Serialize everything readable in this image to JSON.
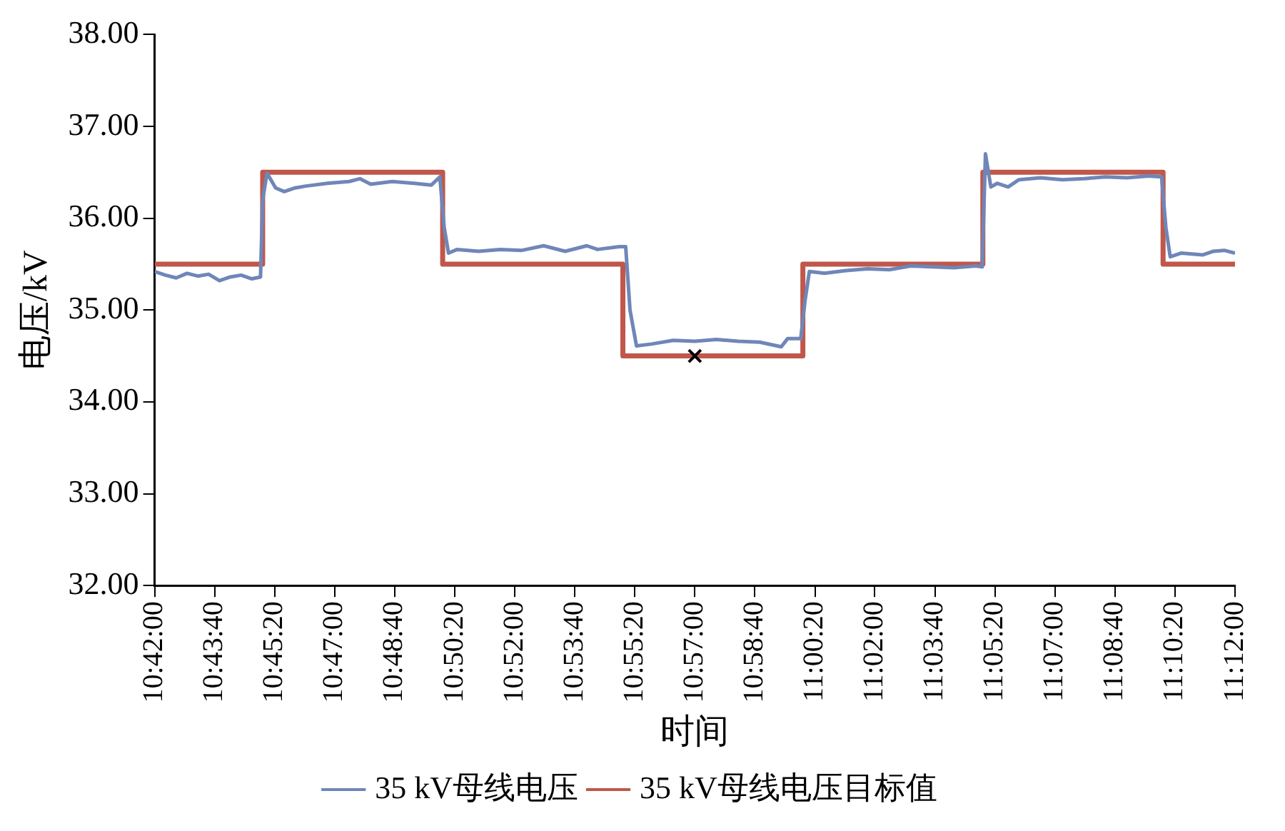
{
  "chart_data": {
    "type": "line",
    "xlabel": "时间",
    "ylabel": "电压/kV",
    "legend": "bottom",
    "grid": false,
    "xlim": [
      10.7,
      11.2
    ],
    "ylim": [
      32,
      38
    ],
    "xticks": [
      {
        "value": 10.7,
        "label": "10:42:00"
      },
      {
        "value": 10.7278,
        "label": "10:43:40"
      },
      {
        "value": 10.7556,
        "label": "10:45:20"
      },
      {
        "value": 10.7833,
        "label": "10:47:00"
      },
      {
        "value": 10.8111,
        "label": "10:48:40"
      },
      {
        "value": 10.8389,
        "label": "10:50:20"
      },
      {
        "value": 10.8667,
        "label": "10:52:00"
      },
      {
        "value": 10.8944,
        "label": "10:53:40"
      },
      {
        "value": 10.9222,
        "label": "10:55:20"
      },
      {
        "value": 10.95,
        "label": "10:57:00"
      },
      {
        "value": 10.9778,
        "label": "10:58:40"
      },
      {
        "value": 11.0056,
        "label": "11:00:20"
      },
      {
        "value": 11.0333,
        "label": "11:02:00"
      },
      {
        "value": 11.0611,
        "label": "11:03:40"
      },
      {
        "value": 11.0889,
        "label": "11:05:20"
      },
      {
        "value": 11.1167,
        "label": "11:07:00"
      },
      {
        "value": 11.1444,
        "label": "11:08:40"
      },
      {
        "value": 11.1722,
        "label": "11:10:20"
      },
      {
        "value": 11.2,
        "label": "11:12:00"
      }
    ],
    "yticks": [
      {
        "value": 32,
        "label": "32.00"
      },
      {
        "value": 33,
        "label": "33.00"
      },
      {
        "value": 34,
        "label": "34.00"
      },
      {
        "value": 35,
        "label": "35.00"
      },
      {
        "value": 36,
        "label": "36.00"
      },
      {
        "value": 37,
        "label": "37.00"
      },
      {
        "value": 38,
        "label": "38.00"
      }
    ],
    "series": [
      {
        "name": "35 kV母线电压",
        "color": "#6f86b8",
        "marker": "none",
        "x": [
          10.7,
          10.705,
          10.71,
          10.715,
          10.72,
          10.725,
          10.73,
          10.735,
          10.74,
          10.745,
          10.749,
          10.75,
          10.752,
          10.756,
          10.76,
          10.765,
          10.77,
          10.78,
          10.79,
          10.795,
          10.8,
          10.81,
          10.82,
          10.828,
          10.832,
          10.834,
          10.836,
          10.84,
          10.85,
          10.86,
          10.87,
          10.88,
          10.89,
          10.9,
          10.905,
          10.915,
          10.918,
          10.92,
          10.923,
          10.93,
          10.94,
          10.95,
          10.96,
          10.97,
          10.98,
          10.99,
          10.993,
          10.999,
          11.001,
          11.003,
          11.01,
          11.02,
          11.03,
          11.04,
          11.05,
          11.06,
          11.07,
          11.08,
          11.083,
          11.0845,
          11.087,
          11.09,
          11.095,
          11.1,
          11.11,
          11.12,
          11.13,
          11.14,
          11.15,
          11.16,
          11.166,
          11.168,
          11.17,
          11.175,
          11.18,
          11.185,
          11.19,
          11.195,
          11.2
        ],
        "values": [
          35.42,
          35.38,
          35.35,
          35.4,
          35.37,
          35.39,
          35.32,
          35.36,
          35.38,
          35.34,
          35.36,
          36.2,
          36.49,
          36.33,
          36.29,
          36.33,
          36.35,
          36.38,
          36.4,
          36.43,
          36.37,
          36.4,
          36.38,
          36.36,
          36.45,
          35.9,
          35.62,
          35.66,
          35.64,
          35.66,
          35.65,
          35.7,
          35.64,
          35.7,
          35.66,
          35.69,
          35.69,
          35.0,
          34.61,
          34.63,
          34.67,
          34.66,
          34.68,
          34.66,
          34.65,
          34.6,
          34.69,
          34.69,
          35.1,
          35.42,
          35.4,
          35.43,
          35.45,
          35.44,
          35.48,
          35.47,
          35.46,
          35.48,
          35.47,
          36.7,
          36.34,
          36.38,
          36.34,
          36.42,
          36.44,
          36.42,
          36.43,
          36.45,
          36.44,
          36.46,
          36.45,
          35.9,
          35.58,
          35.62,
          35.61,
          35.6,
          35.64,
          35.65,
          35.62
        ]
      },
      {
        "name": "35 kV母线电压目标值",
        "type": "step",
        "color": "#c0574b",
        "marker": "none",
        "x": [
          10.7,
          10.75,
          10.8333,
          10.9167,
          11.0,
          11.0833,
          11.1667,
          11.2
        ],
        "values": [
          35.5,
          36.5,
          35.5,
          34.5,
          35.5,
          36.5,
          35.5,
          35.5
        ]
      },
      {
        "type": "scatter",
        "color": "#000000",
        "marker": "cross",
        "x": [
          10.95
        ],
        "values": [
          34.5
        ]
      }
    ]
  }
}
